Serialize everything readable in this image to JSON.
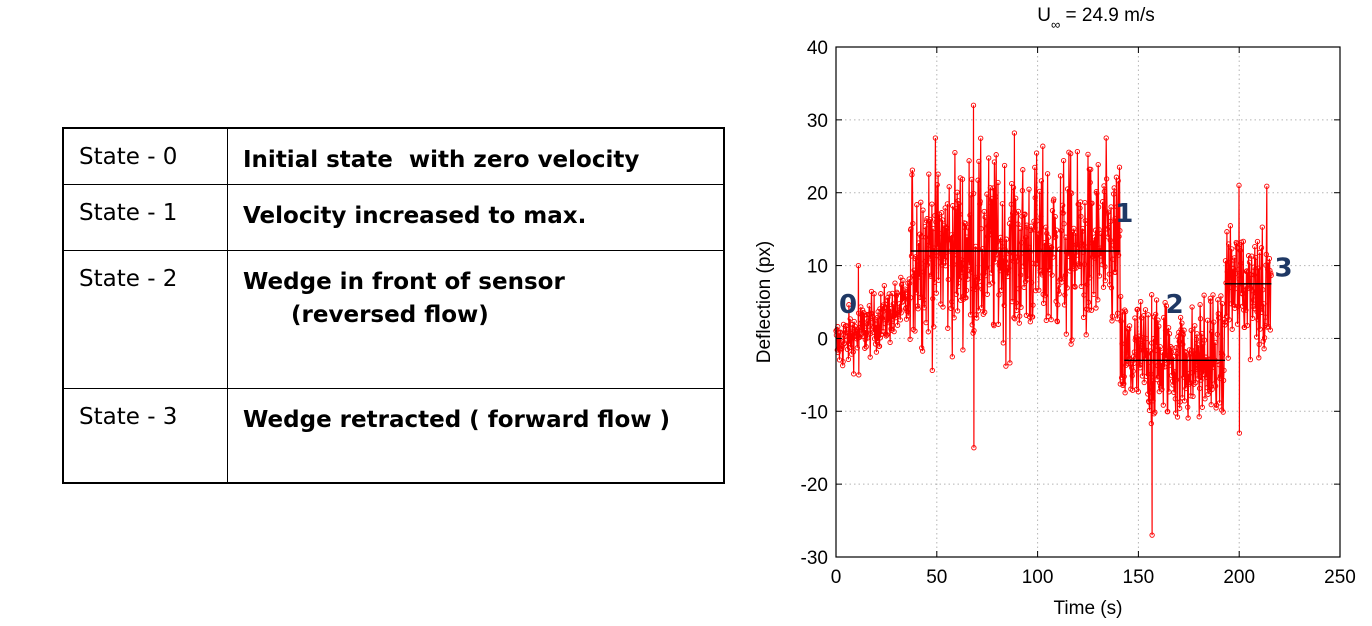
{
  "table": {
    "rows": [
      {
        "state": "State - 0",
        "description": "Initial state  with zero velocity"
      },
      {
        "state": "State - 1",
        "description": "Velocity increased to max."
      },
      {
        "state": "State - 2",
        "description": "Wedge in front of sensor\n      (reversed flow)"
      },
      {
        "state": "State - 3",
        "description": "Wedge retracted ( forward flow )"
      }
    ]
  },
  "chart_data": {
    "type": "line",
    "title": "U∞ = 24.9 m/s",
    "title_main": "U",
    "title_sub": "∞",
    "title_rest": " = 24.9 m/s",
    "xlabel": "Time (s)",
    "ylabel": "Deflection (px)",
    "xlim": [
      0,
      250
    ],
    "ylim": [
      -30,
      40
    ],
    "xticks": [
      0,
      50,
      100,
      150,
      200,
      250
    ],
    "yticks": [
      -30,
      -20,
      -10,
      0,
      10,
      20,
      30,
      40
    ],
    "grid": true,
    "series_color": "#ff0000",
    "mean_line_color": "#000000",
    "segments": [
      {
        "state": "0",
        "x_start": 0,
        "x_end": 37,
        "mean": 0,
        "min": -5,
        "max": 10
      },
      {
        "state": "1",
        "x_start": 37,
        "x_end": 141,
        "mean": 12,
        "min": -15,
        "max": 32
      },
      {
        "state": "2",
        "x_start": 141,
        "x_end": 193,
        "mean": -3,
        "min": -27,
        "max": 6
      },
      {
        "state": "3",
        "x_start": 193,
        "x_end": 216,
        "mean": 7.5,
        "min": -13,
        "max": 21
      }
    ],
    "mean_lines": [
      {
        "x_start": 37,
        "x_end": 141,
        "y": 12
      },
      {
        "x_start": 143,
        "x_end": 193,
        "y": -3
      },
      {
        "x_start": 193,
        "x_end": 216,
        "y": 7.5
      }
    ],
    "annotations": [
      {
        "text": "0",
        "x": 6,
        "y": 3.5
      },
      {
        "text": "1",
        "x": 143,
        "y": 16
      },
      {
        "text": "2",
        "x": 168,
        "y": 3.5
      },
      {
        "text": "3",
        "x": 222,
        "y": 8.5
      }
    ]
  }
}
